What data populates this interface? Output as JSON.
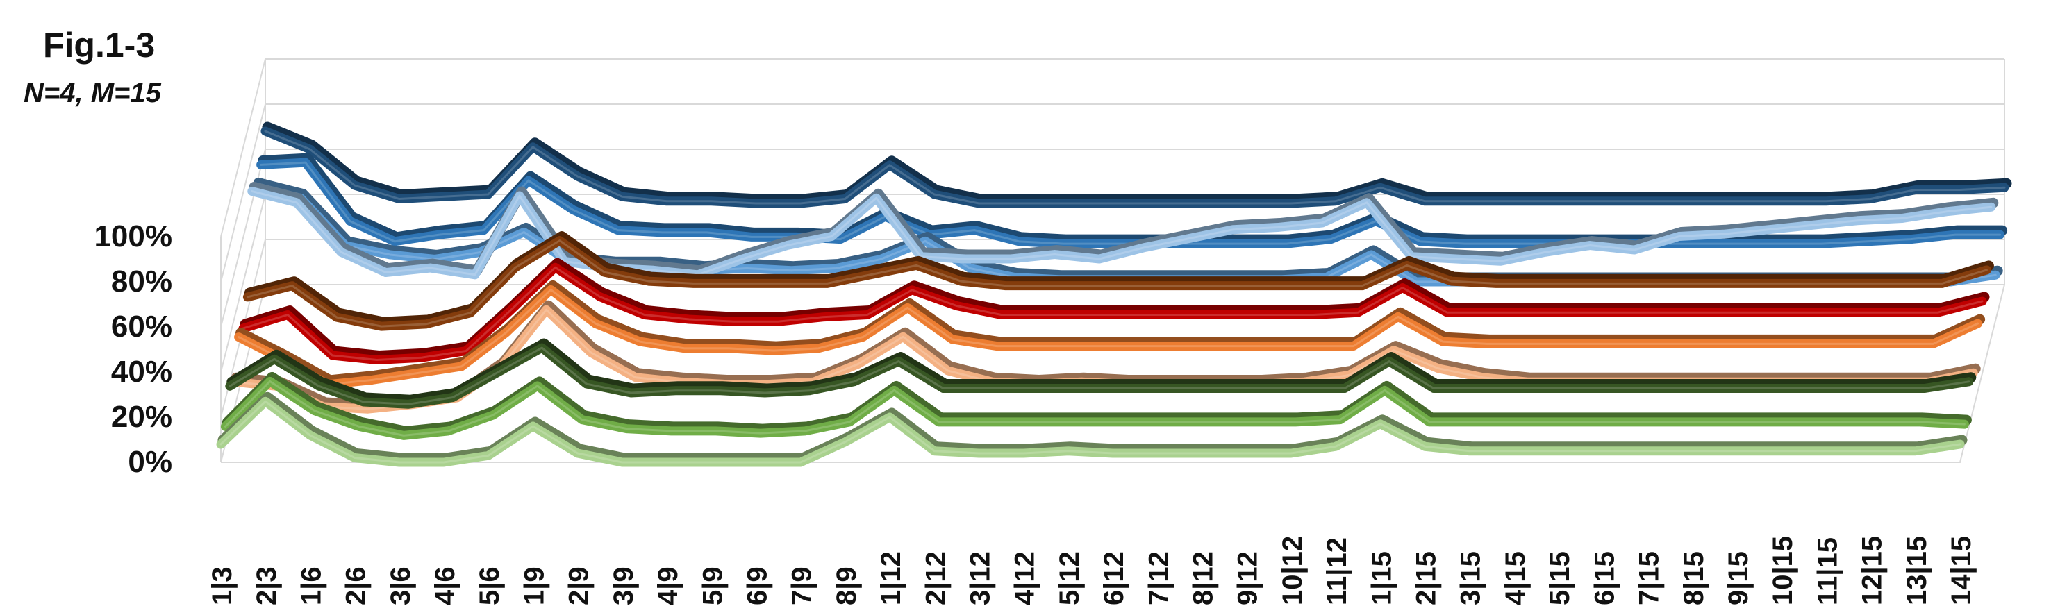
{
  "figure": {
    "title": "Fig.1-3",
    "subtitle": "N=4, M=15"
  },
  "chart_data": {
    "type": "line",
    "render": "3d-ribbon",
    "grid": true,
    "legend": "none",
    "ylim": [
      0,
      100
    ],
    "y_ticks": [
      "0%",
      "20%",
      "40%",
      "60%",
      "80%",
      "100%"
    ],
    "categories": [
      "1|3",
      "2|3",
      "1|6",
      "2|6",
      "3|6",
      "4|6",
      "5|6",
      "1|9",
      "2|9",
      "3|9",
      "4|9",
      "5|9",
      "6|9",
      "7|9",
      "8|9",
      "1|12",
      "2|12",
      "3|12",
      "4|12",
      "5|12",
      "6|12",
      "7|12",
      "8|12",
      "9|12",
      "10|12",
      "11|12",
      "1|15",
      "2|15",
      "3|15",
      "4|15",
      "5|15",
      "6|15",
      "7|15",
      "8|15",
      "9|15",
      "10|15",
      "11|15",
      "12|15",
      "13|15",
      "14|15"
    ],
    "series": [
      {
        "color": "#a9d18e",
        "values": [
          8,
          27,
          12,
          2,
          0,
          0,
          3,
          16,
          4,
          0,
          0,
          0,
          0,
          0,
          9,
          20,
          5,
          4,
          4,
          5,
          4,
          4,
          4,
          4,
          4,
          7,
          17,
          7,
          5,
          5,
          5,
          5,
          5,
          5,
          5,
          5,
          5,
          5,
          5,
          8
        ]
      },
      {
        "color": "#70ad47",
        "values": [
          8,
          28,
          15,
          8,
          4,
          6,
          13,
          26,
          11,
          7,
          6,
          6,
          5,
          6,
          10,
          24,
          10,
          10,
          10,
          10,
          10,
          10,
          10,
          10,
          10,
          11,
          24,
          10,
          10,
          10,
          10,
          10,
          10,
          10,
          10,
          10,
          10,
          10,
          10,
          9
        ]
      },
      {
        "color": "#375623",
        "values": [
          18,
          30,
          18,
          11,
          10,
          13,
          24,
          35,
          19,
          15,
          16,
          16,
          15,
          16,
          20,
          29,
          17,
          17,
          17,
          17,
          17,
          17,
          17,
          17,
          17,
          17,
          29,
          17,
          17,
          17,
          17,
          17,
          17,
          17,
          17,
          17,
          17,
          17,
          17,
          20
        ]
      },
      {
        "color": "#f4b183",
        "values": [
          12,
          10,
          1,
          0,
          2,
          5,
          19,
          44,
          25,
          14,
          12,
          11,
          11,
          12,
          20,
          32,
          17,
          12,
          11,
          12,
          11,
          11,
          11,
          11,
          12,
          15,
          26,
          18,
          14,
          12,
          12,
          12,
          12,
          12,
          12,
          12,
          12,
          12,
          12,
          16
        ]
      },
      {
        "color": "#ed7d31",
        "values": [
          24,
          14,
          3,
          5,
          8,
          11,
          26,
          45,
          30,
          22,
          19,
          19,
          18,
          19,
          24,
          37,
          23,
          20,
          20,
          20,
          20,
          20,
          20,
          20,
          20,
          20,
          33,
          22,
          21,
          21,
          21,
          21,
          21,
          21,
          21,
          21,
          21,
          21,
          21,
          30
        ]
      },
      {
        "color": "#c00000",
        "values": [
          20,
          26,
          8,
          6,
          7,
          10,
          28,
          47,
          34,
          26,
          24,
          23,
          23,
          25,
          26,
          37,
          30,
          26,
          26,
          26,
          26,
          26,
          26,
          26,
          26,
          27,
          38,
          27,
          27,
          27,
          27,
          27,
          27,
          27,
          27,
          27,
          27,
          27,
          27,
          32
        ]
      },
      {
        "color": "#843c0c",
        "values": [
          26,
          31,
          17,
          13,
          14,
          19,
          39,
          51,
          37,
          33,
          32,
          32,
          32,
          32,
          36,
          40,
          33,
          31,
          31,
          31,
          31,
          31,
          31,
          31,
          31,
          31,
          40,
          33,
          32,
          32,
          32,
          32,
          32,
          32,
          32,
          32,
          32,
          32,
          32,
          38
        ]
      },
      {
        "color": "#9dc3e6",
        "values": [
          65,
          60,
          38,
          29,
          31,
          28,
          63,
          34,
          31,
          30,
          28,
          35,
          41,
          45,
          62,
          36,
          35,
          35,
          37,
          35,
          40,
          44,
          48,
          49,
          51,
          60,
          36,
          35,
          34,
          38,
          41,
          39,
          45,
          46,
          48,
          50,
          52,
          53,
          56,
          58
        ]
      },
      {
        "color": "#5b9bd5",
        "values": [
          59,
          54,
          33,
          29,
          27,
          30,
          39,
          26,
          24,
          24,
          22,
          23,
          22,
          23,
          27,
          35,
          23,
          19,
          18,
          18,
          18,
          18,
          18,
          18,
          19,
          29,
          17,
          17,
          17,
          17,
          17,
          17,
          17,
          17,
          17,
          17,
          17,
          17,
          17,
          20
        ]
      },
      {
        "color": "#2e75b6",
        "values": [
          61,
          62,
          36,
          27,
          30,
          32,
          54,
          41,
          32,
          31,
          31,
          29,
          29,
          28,
          38,
          30,
          32,
          27,
          26,
          26,
          26,
          26,
          26,
          26,
          28,
          36,
          27,
          26,
          26,
          26,
          26,
          26,
          26,
          26,
          26,
          26,
          27,
          28,
          30,
          30
        ]
      },
      {
        "color": "#1f4e79",
        "values": [
          68,
          60,
          44,
          38,
          39,
          40,
          61,
          48,
          39,
          37,
          37,
          36,
          36,
          38,
          53,
          40,
          36,
          36,
          36,
          36,
          36,
          36,
          36,
          36,
          37,
          43,
          37,
          37,
          37,
          37,
          37,
          37,
          37,
          37,
          37,
          37,
          38,
          42,
          42,
          43
        ]
      }
    ]
  }
}
